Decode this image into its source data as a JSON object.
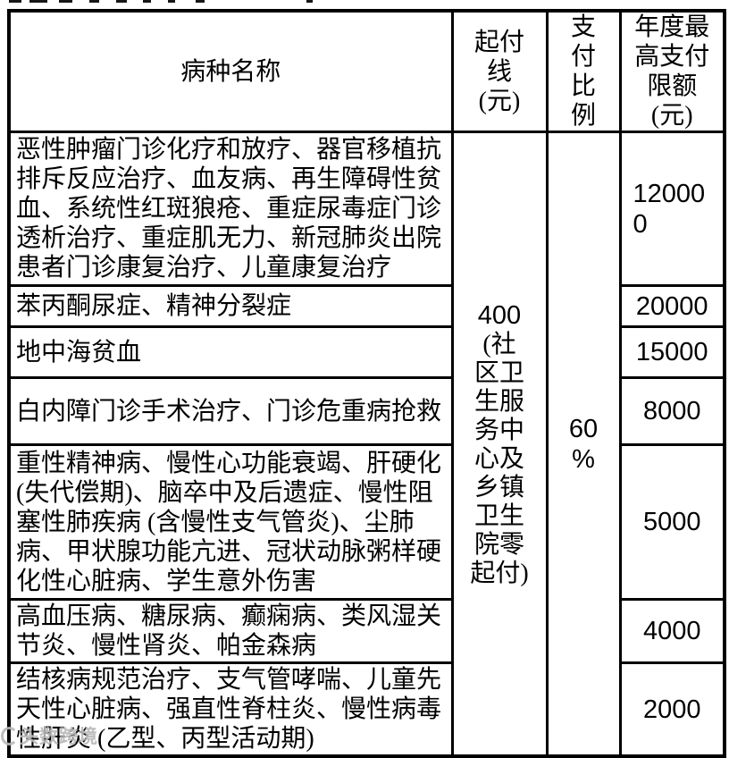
{
  "table": {
    "headers": [
      {
        "label": "病种名称"
      },
      {
        "label": "起付\n线\n(元)"
      },
      {
        "label": "支\n付\n比\n例"
      },
      {
        "label": "年度最\n高支付\n限额\n(元)"
      }
    ],
    "deductible": {
      "value": "400",
      "note": "(社\n区卫\n生服\n务中\n心及\n乡镇\n卫生\n院零\n起付)"
    },
    "pay_ratio": "60\n%",
    "rows": [
      {
        "disease": "恶性肿瘤门诊化疗和放疗、器官移植抗排斥反应治疗、血友病、再生障碍性贫血、系统性红斑狼疮、重症尿毒症门诊透析治疗、重症肌无力、新冠肺炎出院患者门诊康复治疗、儿童康复治疗",
        "limit": "12000\n0"
      },
      {
        "disease": "苯丙酮尿症、精神分裂症",
        "limit": "20000"
      },
      {
        "disease": "地中海贫血",
        "limit": "15000"
      },
      {
        "disease": "白内障门诊手术治疗、门诊危重病抢救",
        "limit": "8000"
      },
      {
        "disease": "重性精神病、慢性心功能衰竭、肝硬化 (失代偿期)、脑卒中及后遗症、慢性阻塞性肺疾病 (含慢性支气管炎)、尘肺病、甲状腺功能亢进、冠状动脉粥样硬化性心脏病、学生意外伤害",
        "limit": "5000"
      },
      {
        "disease": "高血压病、糖尿病、癫痫病、类风湿关节炎、慢性肾炎、帕金森病",
        "limit": "4000"
      },
      {
        "disease": "结核病规范治疗、支气管哮喘、儿童先天性心脏病、强直性脊柱炎、慢性病毒性肝炎 (乙型、丙型活动期)",
        "limit": "2000"
      }
    ]
  },
  "watermark": {
    "text": "头数跨境"
  }
}
